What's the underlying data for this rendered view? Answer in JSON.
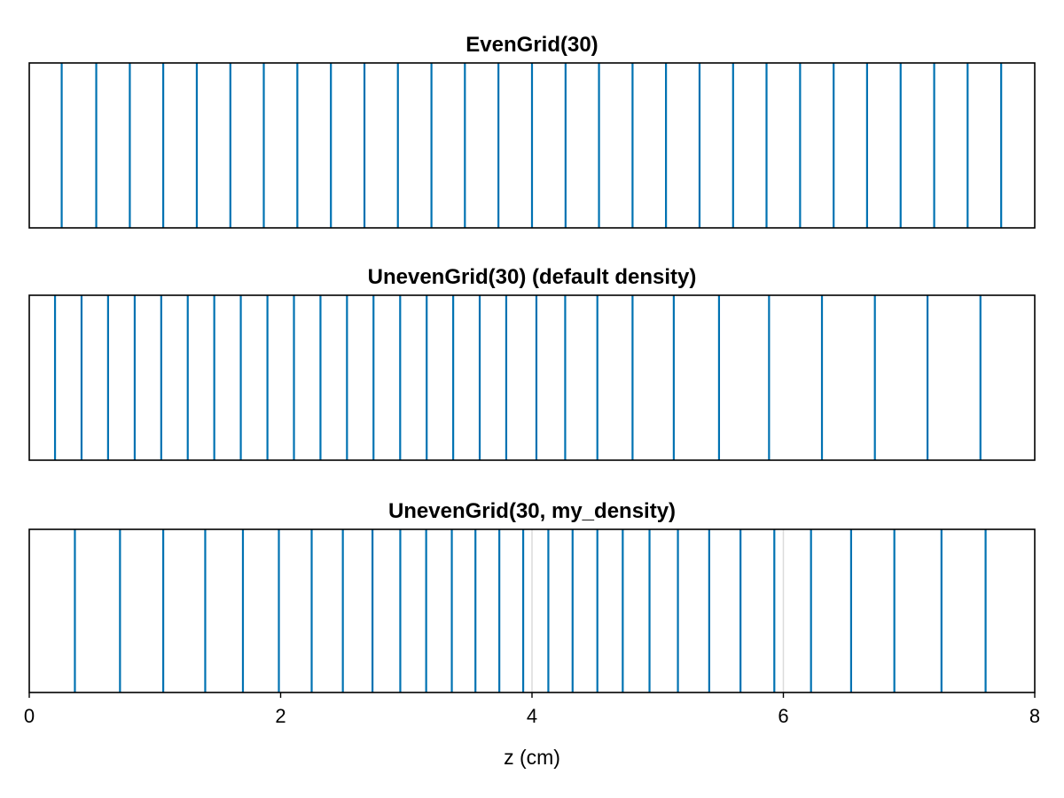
{
  "chart_data": [
    {
      "type": "line",
      "title": "EvenGrid(30)",
      "xlim": [
        0,
        8
      ],
      "color": "#0072b2",
      "x": [
        0.258,
        0.533,
        0.8,
        1.066,
        1.333,
        1.6,
        1.866,
        2.133,
        2.4,
        2.667,
        2.933,
        3.2,
        3.466,
        3.733,
        4.0,
        4.267,
        4.533,
        4.8,
        5.066,
        5.333,
        5.6,
        5.866,
        6.133,
        6.4,
        6.666,
        6.933,
        7.2,
        7.466,
        7.733
      ]
    },
    {
      "type": "line",
      "title": "UnevenGrid(30) (default density)",
      "xlim": [
        0,
        8
      ],
      "color": "#0072b2",
      "x": [
        0.205,
        0.416,
        0.627,
        0.839,
        1.05,
        1.261,
        1.472,
        1.683,
        1.895,
        2.106,
        2.317,
        2.528,
        2.739,
        2.951,
        3.162,
        3.373,
        3.584,
        3.795,
        4.035,
        4.264,
        4.52,
        4.8,
        5.128,
        5.488,
        5.886,
        6.307,
        6.728,
        7.147,
        7.568
      ]
    },
    {
      "type": "line",
      "title": "UnevenGrid(30, my_density)",
      "xlim": [
        0,
        8
      ],
      "color": "#0072b2",
      "x": [
        0.363,
        0.722,
        1.066,
        1.4,
        1.7,
        1.986,
        2.247,
        2.495,
        2.731,
        2.952,
        3.158,
        3.362,
        3.55,
        3.74,
        3.93,
        4.13,
        4.323,
        4.52,
        4.722,
        4.935,
        5.161,
        5.41,
        5.659,
        5.928,
        6.22,
        6.539,
        6.883,
        7.258,
        7.609
      ],
      "grid_x": [
        4,
        6
      ],
      "xticks": [
        "0",
        "2",
        "4",
        "6",
        "8"
      ],
      "xlabel": "z (cm)"
    }
  ]
}
